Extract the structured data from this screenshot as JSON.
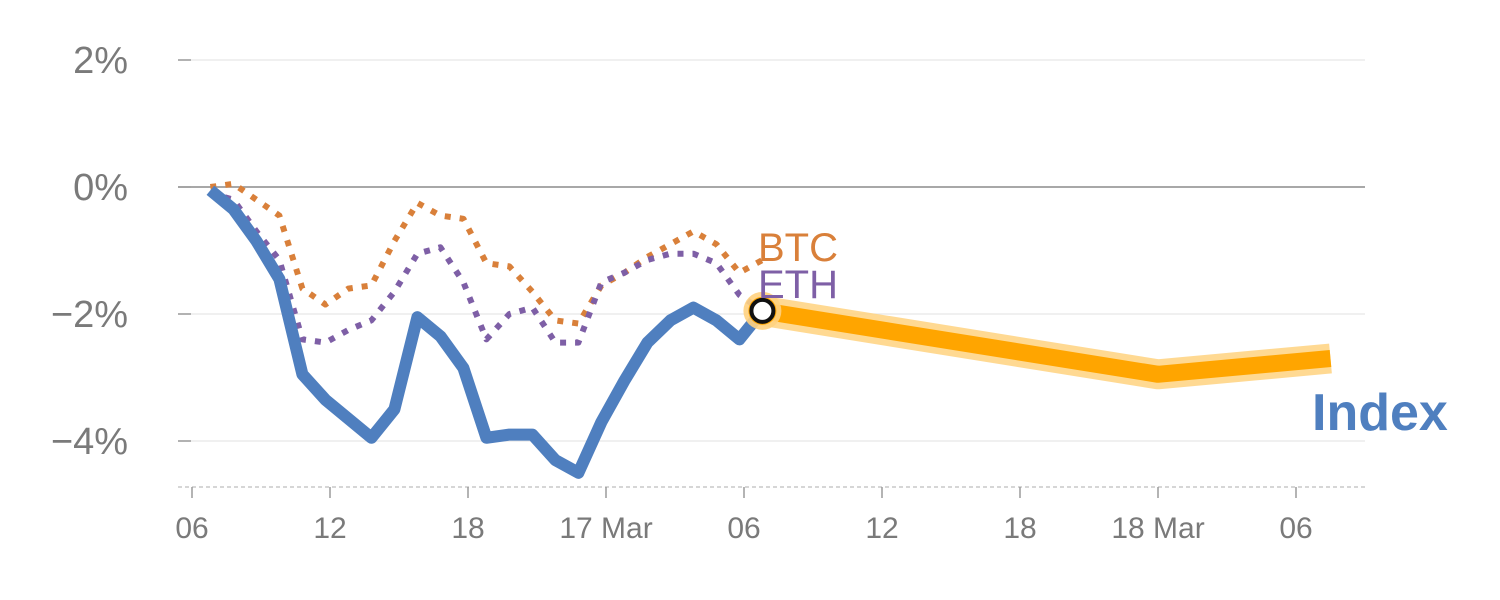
{
  "chart_data": {
    "type": "line",
    "x_axis": {
      "ticks": [
        "06",
        "12",
        "18",
        "17 Mar",
        "06",
        "12",
        "18",
        "18 Mar",
        "06"
      ],
      "tick_hours": [
        0,
        6,
        12,
        18,
        24,
        30,
        36,
        42,
        48
      ],
      "range_hours": [
        0,
        51
      ]
    },
    "y_axis": {
      "ticks": [
        2,
        0,
        -2,
        -4
      ],
      "tick_labels": [
        "2%",
        "0%",
        "−2%",
        "−4%"
      ],
      "ylim": [
        -4.7,
        2
      ],
      "unit": "%"
    },
    "zero_line": true,
    "grid": "horizontal",
    "colors": {
      "index": "#4f7fbf",
      "btc": "#d9803a",
      "eth": "#7e5fa6",
      "forecast": "#ffa500",
      "forecast_halo": "#ffd27f",
      "grid": "#e6e6e6",
      "zero": "#8c8c8c",
      "tick_text": "#7a7a7a"
    },
    "series": [
      {
        "key": "index",
        "name": "Index",
        "style": "solid",
        "x": [
          0.8,
          1.8,
          2.8,
          3.8,
          4.8,
          5.8,
          6.8,
          7.8,
          8.8,
          9.8,
          10.8,
          11.8,
          12.8,
          13.8,
          14.8,
          15.8,
          16.8,
          17.8,
          18.8,
          19.8,
          20.8,
          21.8,
          22.8,
          23.8,
          24.8
        ],
        "values": [
          -0.05,
          -0.35,
          -0.85,
          -1.45,
          -2.95,
          -3.35,
          -3.65,
          -3.95,
          -3.5,
          -2.05,
          -2.35,
          -2.85,
          -3.95,
          -3.9,
          -3.9,
          -4.3,
          -4.5,
          -3.7,
          -3.05,
          -2.45,
          -2.1,
          -1.9,
          -2.1,
          -2.4,
          -1.95
        ]
      },
      {
        "key": "btc",
        "name": "BTC",
        "style": "dotted",
        "x": [
          0.8,
          1.8,
          2.8,
          3.8,
          4.8,
          5.8,
          6.8,
          7.8,
          8.8,
          9.8,
          10.8,
          11.8,
          12.8,
          13.8,
          14.8,
          15.8,
          16.8,
          17.8,
          18.8,
          19.8,
          20.8,
          21.8,
          22.8,
          23.8,
          24.8
        ],
        "values": [
          0.0,
          0.05,
          -0.2,
          -0.45,
          -1.6,
          -1.85,
          -1.6,
          -1.55,
          -0.85,
          -0.25,
          -0.45,
          -0.5,
          -1.2,
          -1.25,
          -1.65,
          -2.1,
          -2.15,
          -1.55,
          -1.35,
          -1.1,
          -0.9,
          -0.7,
          -0.9,
          -1.35,
          -1.15
        ]
      },
      {
        "key": "eth",
        "name": "ETH",
        "style": "dotted",
        "x": [
          0.8,
          1.8,
          2.8,
          3.8,
          4.8,
          5.8,
          6.8,
          7.8,
          8.8,
          9.8,
          10.8,
          11.8,
          12.8,
          13.8,
          14.8,
          15.8,
          16.8,
          17.8,
          18.8,
          19.8,
          20.8,
          21.8,
          22.8,
          23.8,
          24.8
        ],
        "values": [
          -0.1,
          -0.2,
          -0.7,
          -1.15,
          -2.4,
          -2.45,
          -2.25,
          -2.1,
          -1.65,
          -1.05,
          -0.95,
          -1.5,
          -2.4,
          -2.0,
          -1.9,
          -2.45,
          -2.45,
          -1.5,
          -1.35,
          -1.15,
          -1.05,
          -1.05,
          -1.2,
          -1.7,
          -1.95
        ]
      },
      {
        "key": "forecast",
        "name": "",
        "style": "band",
        "x": [
          24.8,
          42.0,
          49.5
        ],
        "values": [
          -1.95,
          -2.95,
          -2.7
        ]
      }
    ],
    "current_marker": {
      "x": 24.8,
      "value": -1.95
    },
    "labels": {
      "index": "Index",
      "btc": "BTC",
      "eth": "ETH"
    }
  }
}
